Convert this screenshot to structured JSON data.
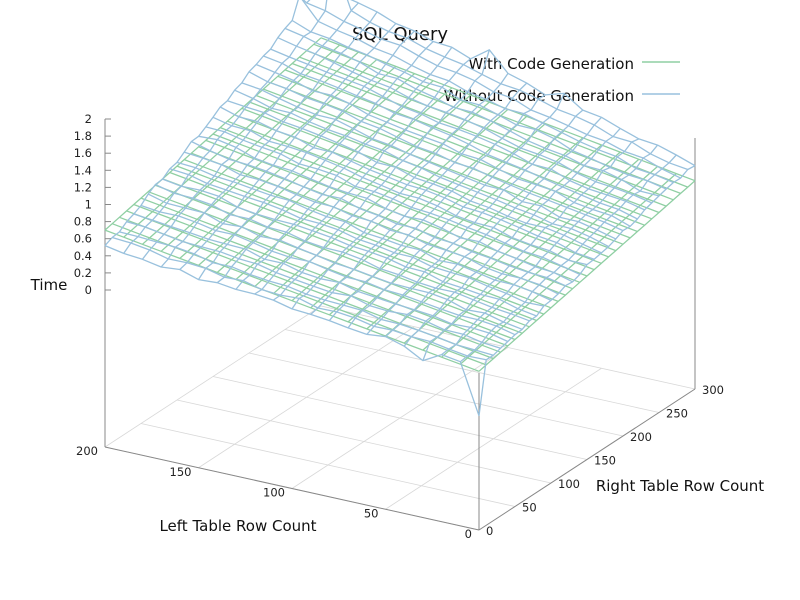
{
  "chart_data": {
    "type": "surface",
    "title": "SQL Query",
    "xlabel": "Left Table Row Count",
    "ylabel": "Right Table Row Count",
    "zlabel": "Time",
    "x_ticks": [
      "0",
      "50",
      "100",
      "150",
      "200"
    ],
    "y_ticks": [
      "0",
      "50",
      "100",
      "150",
      "200",
      "250",
      "300"
    ],
    "z_ticks": [
      "0",
      "0.2",
      "0.4",
      "0.6",
      "0.8",
      "1",
      "1.2",
      "1.4",
      "1.6",
      "1.8",
      "2"
    ],
    "xlim": [
      0,
      200
    ],
    "ylim": [
      0,
      300
    ],
    "zlim": [
      0,
      2
    ],
    "grid": true,
    "legend_position": "top-right",
    "series": [
      {
        "name": "With Code Generation",
        "color": "#8fcfa3",
        "description_values": "approximately planar: about 0 at (0,0), about 0.7 at (200,0), about 0.6 at (0,300), about 1.3 at (200,300)"
      },
      {
        "name": "Without Code Generation",
        "color": "#99c1dd",
        "description_values": "approximately planar with noise spikes: about 0.05 at (0,0), about 0.45 at (200,0), about 0.8 at (0,300), about 1.9 at (200,300); spike to about 2.35 near (190,290), dip to about -0.5 near (0,0)"
      }
    ]
  }
}
